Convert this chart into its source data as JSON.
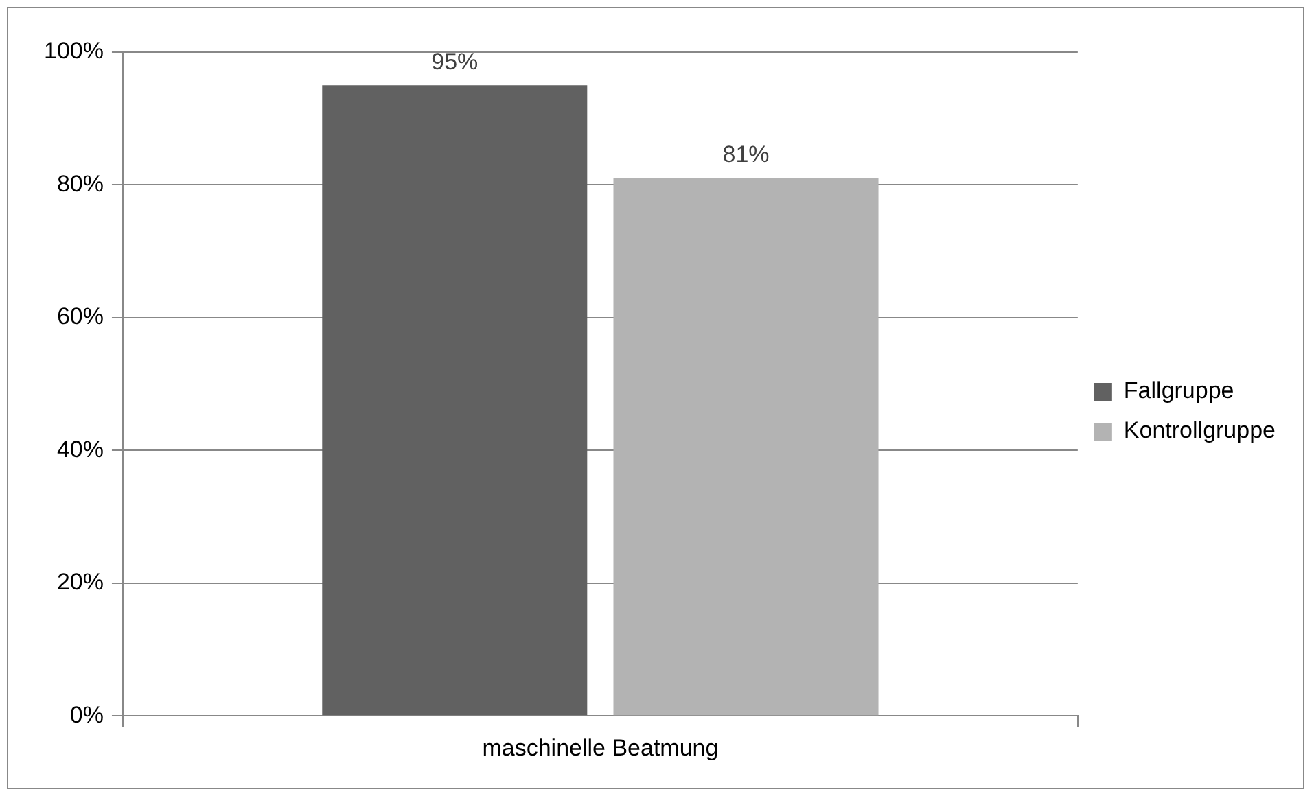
{
  "chart_data": {
    "type": "bar",
    "categories": [
      "maschinelle Beatmung"
    ],
    "series": [
      {
        "name": "Fallgruppe",
        "color": "#616161",
        "values": [
          95
        ],
        "value_labels": [
          "95%"
        ]
      },
      {
        "name": "Kontrollgruppe",
        "color": "#b3b3b3",
        "values": [
          81
        ],
        "value_labels": [
          "81%"
        ]
      }
    ],
    "ylim": [
      0,
      100
    ],
    "yticks": [
      {
        "value": 0,
        "label": "0%"
      },
      {
        "value": 20,
        "label": "20%"
      },
      {
        "value": 40,
        "label": "40%"
      },
      {
        "value": 60,
        "label": "60%"
      },
      {
        "value": 80,
        "label": "80%"
      },
      {
        "value": 100,
        "label": "100%"
      }
    ],
    "grid": "y",
    "legend": "right"
  }
}
